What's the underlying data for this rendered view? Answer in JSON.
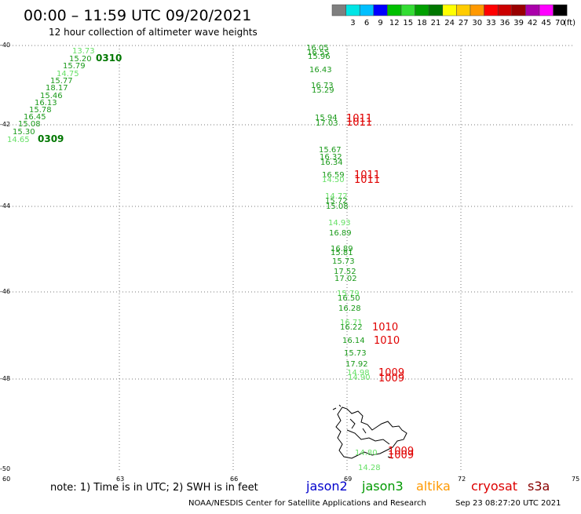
{
  "header": {
    "title": "00:00 – 11:59 UTC 09/20/2021",
    "subtitle": "12 hour collection of altimeter wave heights"
  },
  "colorbar": {
    "unit": "(ft)",
    "bins": [
      {
        "label": "",
        "color": "#7f7f7f"
      },
      {
        "label": "3",
        "color": "#00e5e5"
      },
      {
        "label": "6",
        "color": "#00bfff"
      },
      {
        "label": "9",
        "color": "#0000ff"
      },
      {
        "label": "12",
        "color": "#00c000"
      },
      {
        "label": "15",
        "color": "#33dd33"
      },
      {
        "label": "18",
        "color": "#00a000"
      },
      {
        "label": "21",
        "color": "#007700"
      },
      {
        "label": "24",
        "color": "#ffff00"
      },
      {
        "label": "27",
        "color": "#ffcc00"
      },
      {
        "label": "30",
        "color": "#ff9900"
      },
      {
        "label": "33",
        "color": "#ff0000"
      },
      {
        "label": "36",
        "color": "#cc0000"
      },
      {
        "label": "39",
        "color": "#990000"
      },
      {
        "label": "42",
        "color": "#aa00aa"
      },
      {
        "label": "45",
        "color": "#ff00ff"
      },
      {
        "label": "70",
        "color": "#000000"
      }
    ]
  },
  "axes": {
    "lat_labels": [
      "-40",
      "-42",
      "-44",
      "-46",
      "-48",
      "-50"
    ],
    "lon_labels": [
      "60",
      "63",
      "66",
      "69",
      "72",
      "75"
    ]
  },
  "tracks": {
    "diag_labels": [
      {
        "text": "13.73",
        "color": "#66e066"
      },
      {
        "text": "15.20",
        "color": "#1a9a1a"
      },
      {
        "text": "15.79",
        "color": "#1a9a1a"
      },
      {
        "text": "14.75",
        "color": "#66e066"
      },
      {
        "text": "15.77",
        "color": "#1a9a1a"
      },
      {
        "text": "18.17",
        "color": "#1a9a1a"
      },
      {
        "text": "15.46",
        "color": "#1a9a1a"
      },
      {
        "text": "16.13",
        "color": "#1a9a1a"
      },
      {
        "text": "15.78",
        "color": "#1a9a1a"
      },
      {
        "text": "16.45",
        "color": "#1a9a1a"
      },
      {
        "text": "15.08",
        "color": "#1a9a1a"
      },
      {
        "text": "15.30",
        "color": "#1a9a1a"
      },
      {
        "text": "14.65",
        "color": "#66e066"
      }
    ],
    "diag_times": [
      "0310",
      "0309"
    ],
    "vert_labels": [
      {
        "text": "16.05",
        "color": "#1a9a1a"
      },
      {
        "text": "16.55",
        "color": "#1a9a1a"
      },
      {
        "text": "15.96",
        "color": "#1a9a1a"
      },
      {
        "text": "16.43",
        "color": "#1a9a1a"
      },
      {
        "text": "16.73",
        "color": "#1a9a1a"
      },
      {
        "text": "15.29",
        "color": "#1a9a1a"
      },
      {
        "text": "15.94",
        "color": "#1a9a1a"
      },
      {
        "text": "17.03",
        "color": "#1a9a1a"
      },
      {
        "text": "15.67",
        "color": "#1a9a1a"
      },
      {
        "text": "16.32",
        "color": "#1a9a1a"
      },
      {
        "text": "16.34",
        "color": "#1a9a1a"
      },
      {
        "text": "16.59",
        "color": "#1a9a1a"
      },
      {
        "text": "14.50",
        "color": "#66e066"
      },
      {
        "text": "14.72",
        "color": "#66e066"
      },
      {
        "text": "15.72",
        "color": "#1a9a1a"
      },
      {
        "text": "15.08",
        "color": "#1a9a1a"
      },
      {
        "text": "14.93",
        "color": "#66e066"
      },
      {
        "text": "16.89",
        "color": "#1a9a1a"
      },
      {
        "text": "16.89",
        "color": "#1a9a1a"
      },
      {
        "text": "15.81",
        "color": "#1a9a1a"
      },
      {
        "text": "15.73",
        "color": "#1a9a1a"
      },
      {
        "text": "17.52",
        "color": "#1a9a1a"
      },
      {
        "text": "17.02",
        "color": "#1a9a1a"
      },
      {
        "text": "15.79",
        "color": "#66e066"
      },
      {
        "text": "16.50",
        "color": "#1a9a1a"
      },
      {
        "text": "16.28",
        "color": "#1a9a1a"
      },
      {
        "text": "16.71",
        "color": "#66e066"
      },
      {
        "text": "16.22",
        "color": "#1a9a1a"
      },
      {
        "text": "16.14",
        "color": "#1a9a1a"
      },
      {
        "text": "15.73",
        "color": "#1a9a1a"
      },
      {
        "text": "17.92",
        "color": "#1a9a1a"
      },
      {
        "text": "14.98",
        "color": "#66e066"
      },
      {
        "text": "14.90",
        "color": "#66e066"
      },
      {
        "text": "14.80",
        "color": "#66e066"
      },
      {
        "text": "14.28",
        "color": "#66e066"
      }
    ],
    "vert_times": [
      "1011",
      "1011",
      "1011",
      "1011",
      "1010",
      "1010",
      "1009",
      "1009",
      "1009",
      "1009"
    ]
  },
  "footer": {
    "note": "note: 1) Time is in UTC; 2) SWH is in feet",
    "legend": [
      {
        "text": "jason2",
        "color": "#0000cc"
      },
      {
        "text": "jason3",
        "color": "#009900"
      },
      {
        "text": "altika",
        "color": "#ff9900"
      },
      {
        "text": "cryosat",
        "color": "#dd0000"
      },
      {
        "text": "s3a",
        "color": "#880000"
      }
    ],
    "credit": "NOAA/NESDIS Center for Satellite Applications and Research",
    "timestamp": "Sep 23 08:27:20 UTC 2021"
  }
}
